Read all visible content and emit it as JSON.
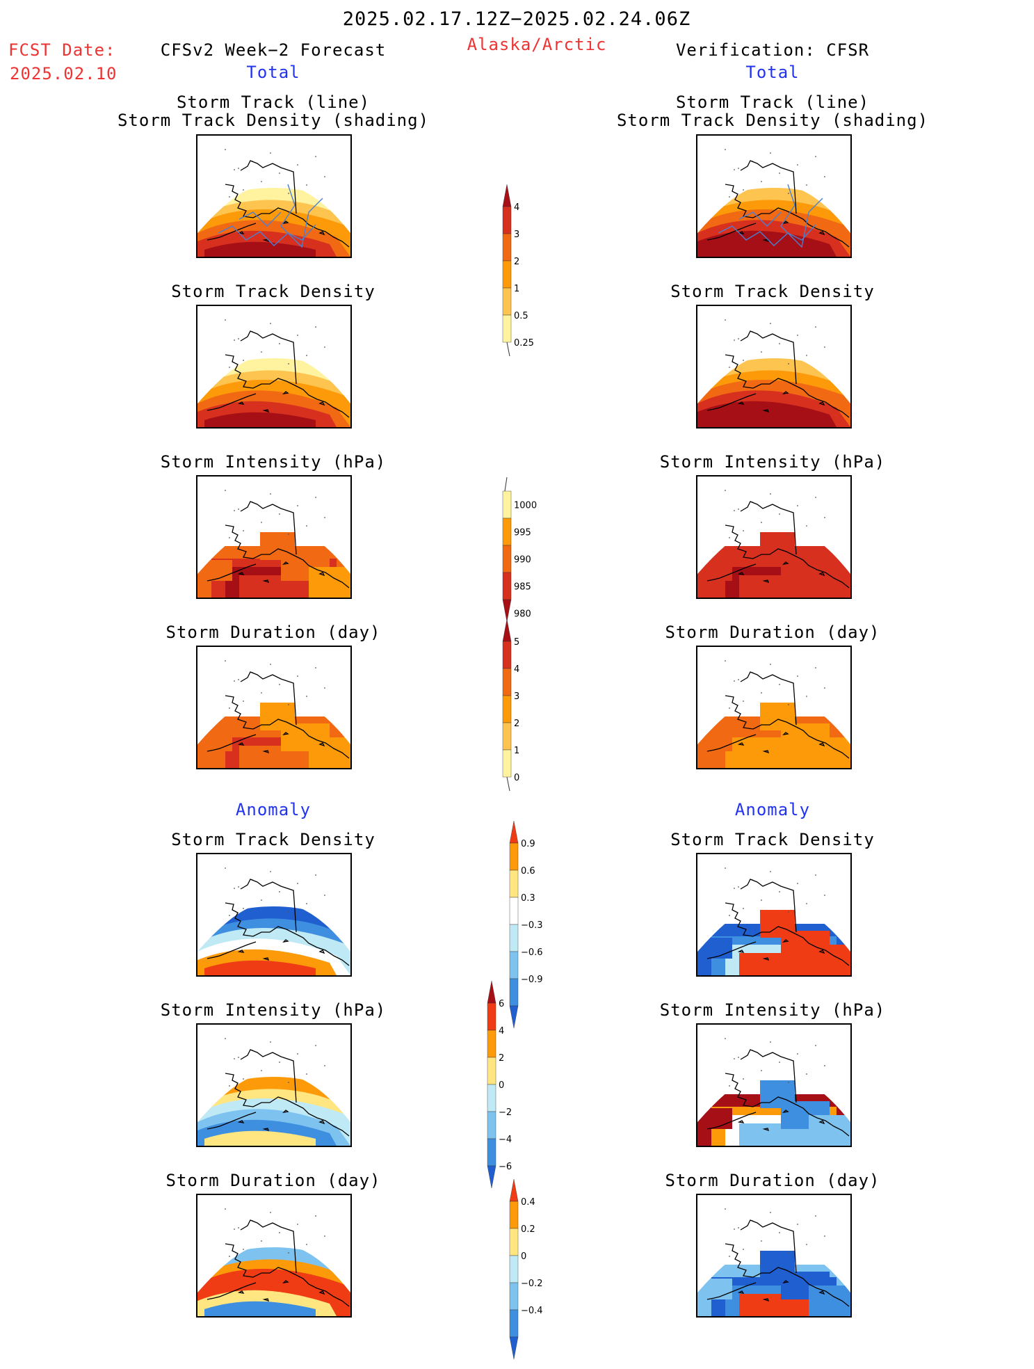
{
  "header": {
    "date_range": "2025.02.17.12Z−2025.02.24.06Z",
    "region": "Alaska/Arctic",
    "fcst_label": "FCST Date:",
    "fcst_date": "2025.02.10",
    "left_title": "CFSv2 Week−2 Forecast",
    "right_title": "Verification: CFSR",
    "left_subtitle": "Total",
    "right_subtitle": "Total"
  },
  "sections": {
    "total_track_title_1": "Storm Track (line)",
    "total_track_title_2": "Storm Track Density (shading)",
    "density_title": "Storm Track Density",
    "intensity_title": "Storm Intensity (hPa)",
    "duration_title": "Storm Duration (day)",
    "anomaly_label": "Anomaly"
  },
  "colorbars": {
    "track_density": {
      "labels": [
        "4",
        "3",
        "2",
        "1",
        "0.5",
        "0.25"
      ],
      "colors": [
        "#a50f15",
        "#d7301f",
        "#f16913",
        "#fd9a09",
        "#fdc450",
        "#fff3a0"
      ]
    },
    "intensity": {
      "labels": [
        "1000",
        "995",
        "990",
        "985",
        "980"
      ],
      "colors": [
        "#fff3a0",
        "#fd9a09",
        "#f16913",
        "#d7301f",
        "#a50f15"
      ]
    },
    "duration": {
      "labels": [
        "5",
        "4",
        "3",
        "2",
        "1",
        "0"
      ],
      "colors": [
        "#a50f15",
        "#d7301f",
        "#f16913",
        "#fd9a09",
        "#fdc450",
        "#fff3a0"
      ]
    },
    "anom_density": {
      "labels": [
        "0.9",
        "0.6",
        "0.3",
        "−0.3",
        "−0.6",
        "−0.9"
      ],
      "colors": [
        "#f03c14",
        "#fd9a09",
        "#ffe680",
        "#ffffff",
        "#bfeaf5",
        "#7ec3f0",
        "#3f8fe0",
        "#1f5fd0"
      ]
    },
    "anom_intensity": {
      "labels": [
        "6",
        "4",
        "2",
        "0",
        "−2",
        "−4",
        "−6"
      ],
      "colors": [
        "#a50f15",
        "#f03c14",
        "#fd9a09",
        "#ffe680",
        "#bfeaf5",
        "#7ec3f0",
        "#3f8fe0",
        "#1f5fd0"
      ]
    },
    "anom_duration": {
      "labels": [
        "0.4",
        "0.2",
        "0",
        "−0.2",
        "−0.4"
      ],
      "colors": [
        "#f03c14",
        "#fd9a09",
        "#ffe680",
        "#bfeaf5",
        "#7ec3f0",
        "#3f8fe0",
        "#1f5fd0"
      ]
    }
  },
  "maps": {
    "fc_track": {
      "palette": [
        "#fff3a0",
        "#fdc450",
        "#fd9a09",
        "#f16913",
        "#d7301f",
        "#a50f15"
      ],
      "pattern": "bands",
      "tracks": true
    },
    "vf_track": {
      "palette": [
        "#fdc450",
        "#fd9a09",
        "#f16913",
        "#d7301f",
        "#a50f15",
        "#a50f15"
      ],
      "pattern": "bands",
      "tracks": true
    },
    "fc_density": {
      "palette": [
        "#fff3a0",
        "#fdc450",
        "#fd9a09",
        "#f16913",
        "#d7301f",
        "#a50f15"
      ],
      "pattern": "bands",
      "tracks": false
    },
    "vf_density": {
      "palette": [
        "#fdc450",
        "#fd9a09",
        "#f16913",
        "#d7301f",
        "#a50f15",
        "#a50f15"
      ],
      "pattern": "bands",
      "tracks": false
    },
    "fc_intensity": {
      "palette": [
        "#f16913",
        "#d7301f",
        "#a50f15",
        "#d7301f",
        "#f16913",
        "#fd9a09"
      ],
      "pattern": "blocks",
      "tracks": false
    },
    "vf_intensity": {
      "palette": [
        "#d7301f",
        "#d7301f",
        "#a50f15",
        "#d7301f",
        "#d7301f",
        "#d7301f"
      ],
      "pattern": "blocks",
      "tracks": false
    },
    "fc_duration": {
      "palette": [
        "#f16913",
        "#f16913",
        "#d7301f",
        "#f16913",
        "#fd9a09",
        "#fd9a09"
      ],
      "pattern": "blocks",
      "tracks": false
    },
    "vf_duration": {
      "palette": [
        "#f16913",
        "#f16913",
        "#fd9a09",
        "#fd9a09",
        "#fd9a09",
        "#fd9a09"
      ],
      "pattern": "blocks",
      "tracks": false
    },
    "fc_anom_density": {
      "palette": [
        "#1f5fd0",
        "#3f8fe0",
        "#bfeaf5",
        "#ffffff",
        "#fd9a09",
        "#f03c14"
      ],
      "pattern": "bands",
      "tracks": false
    },
    "vf_anom_density": {
      "palette": [
        "#1f5fd0",
        "#3f8fe0",
        "#bfeaf5",
        "#f03c14",
        "#f03c14",
        "#f03c14"
      ],
      "pattern": "blocks",
      "tracks": false
    },
    "fc_anom_intensity": {
      "palette": [
        "#fd9a09",
        "#ffe680",
        "#bfeaf5",
        "#7ec3f0",
        "#3f8fe0",
        "#ffe680"
      ],
      "pattern": "bands",
      "tracks": false
    },
    "vf_anom_intensity": {
      "palette": [
        "#a50f15",
        "#fd9a09",
        "#ffffff",
        "#7ec3f0",
        "#3f8fe0",
        "#7ec3f0"
      ],
      "pattern": "blocks",
      "tracks": false
    },
    "fc_anom_duration": {
      "palette": [
        "#7ec3f0",
        "#fd9a09",
        "#f03c14",
        "#f03c14",
        "#ffe680",
        "#3f8fe0"
      ],
      "pattern": "bands",
      "tracks": false
    },
    "vf_anom_duration": {
      "palette": [
        "#7ec3f0",
        "#1f5fd0",
        "#3f8fe0",
        "#f03c14",
        "#1f5fd0",
        "#3f8fe0"
      ],
      "pattern": "blocks",
      "tracks": false
    }
  }
}
